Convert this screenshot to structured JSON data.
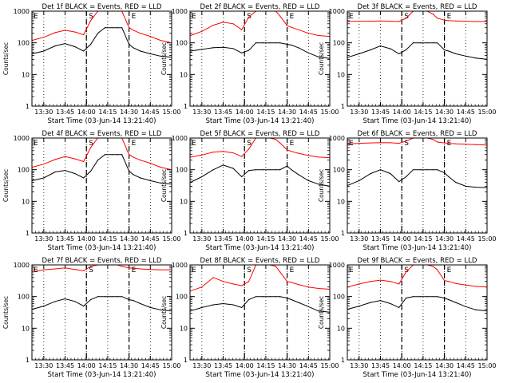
{
  "chart_data": {
    "type": "line",
    "layout": "3x3 grid",
    "shared": {
      "ylabel": "Counts/sec",
      "yscale": "log",
      "ylim": [
        1,
        1000
      ],
      "yticks": [
        {
          "value": 1,
          "label": "1"
        },
        {
          "value": 10,
          "label": "10"
        },
        {
          "value": 100,
          "label": "100"
        },
        {
          "value": 1000,
          "label": "1000"
        }
      ],
      "xlim": [
        "13:21:40",
        "15:00"
      ],
      "xticks": [
        "13:30",
        "13:45",
        "14:00",
        "14:15",
        "14:30",
        "14:45",
        "15:00"
      ],
      "markers": [
        {
          "label": "E",
          "time": "13:21:40",
          "style": "dotted"
        },
        {
          "label": "S",
          "time": "14:00",
          "style": "dashed"
        },
        {
          "label": "E",
          "time": "14:30",
          "style": "dashed"
        }
      ],
      "series_colors": {
        "events": "#000000",
        "lld": "#ff0000"
      }
    },
    "panels": [
      {
        "title": "Det 1f BLACK = Events, RED = LLD",
        "xlabel": "Start Time (03-Jun-14 13:21:40)",
        "x": [
          "13:22",
          "13:30",
          "13:38",
          "13:45",
          "13:52",
          "13:58",
          "14:03",
          "14:08",
          "14:13",
          "14:18",
          "14:22",
          "14:25",
          "14:30",
          "14:33",
          "14:38",
          "14:45",
          "14:52",
          "15:00"
        ],
        "events": [
          45,
          55,
          80,
          95,
          75,
          55,
          90,
          200,
          300,
          300,
          300,
          300,
          90,
          70,
          55,
          45,
          38,
          35
        ],
        "lld": [
          120,
          150,
          210,
          250,
          220,
          180,
          500,
          1300,
          1300,
          1300,
          1200,
          1000,
          300,
          250,
          200,
          160,
          120,
          100
        ]
      },
      {
        "title": "Det 2f BLACK = Events, RED = LLD",
        "xlabel": "Start Time (03-Jun-14 13:21:40)",
        "x": [
          "13:22",
          "13:30",
          "13:38",
          "13:45",
          "13:52",
          "13:58",
          "14:03",
          "14:08",
          "14:13",
          "14:18",
          "14:22",
          "14:25",
          "14:30",
          "14:33",
          "14:38",
          "14:45",
          "14:52",
          "15:00"
        ],
        "events": [
          55,
          62,
          70,
          72,
          66,
          48,
          58,
          100,
          100,
          100,
          100,
          100,
          90,
          85,
          70,
          48,
          36,
          32
        ],
        "lld": [
          170,
          230,
          360,
          450,
          400,
          260,
          650,
          1500,
          2000,
          2300,
          1800,
          700,
          350,
          310,
          260,
          200,
          170,
          160
        ]
      },
      {
        "title": "Det 3f BLACK = Events, RED = LLD",
        "xlabel": "Start Time (03-Jun-14 13:21:40)",
        "x": [
          "13:22",
          "13:30",
          "13:38",
          "13:45",
          "13:52",
          "13:58",
          "14:03",
          "14:08",
          "14:13",
          "14:18",
          "14:22",
          "14:25",
          "14:30",
          "14:33",
          "14:38",
          "14:45",
          "14:52",
          "15:00"
        ],
        "events": [
          35,
          45,
          60,
          80,
          65,
          45,
          60,
          100,
          100,
          100,
          100,
          100,
          60,
          55,
          45,
          38,
          33,
          30
        ],
        "lld": [
          470,
          480,
          480,
          490,
          480,
          470,
          600,
          1100,
          1200,
          1100,
          800,
          600,
          520,
          500,
          490,
          480,
          470,
          470
        ]
      },
      {
        "title": "Det 4f BLACK = Events, RED = LLD",
        "xlabel": "Start Time (03-Jun-14 13:21:40)",
        "x": [
          "13:22",
          "13:30",
          "13:38",
          "13:45",
          "13:52",
          "13:58",
          "14:03",
          "14:08",
          "14:13",
          "14:18",
          "14:22",
          "14:25",
          "14:30",
          "14:33",
          "14:38",
          "14:45",
          "14:52",
          "15:00"
        ],
        "events": [
          45,
          55,
          85,
          95,
          75,
          55,
          90,
          200,
          300,
          300,
          300,
          300,
          90,
          70,
          55,
          45,
          38,
          35
        ],
        "lld": [
          120,
          150,
          210,
          260,
          220,
          180,
          500,
          1300,
          1300,
          1300,
          1200,
          1000,
          300,
          250,
          200,
          160,
          120,
          100
        ]
      },
      {
        "title": "Det 5f BLACK = Events, RED = LLD",
        "xlabel": "Start Time (03-Jun-14 13:21:40)",
        "x": [
          "13:22",
          "13:30",
          "13:38",
          "13:45",
          "13:52",
          "13:58",
          "14:03",
          "14:08",
          "14:13",
          "14:18",
          "14:22",
          "14:25",
          "14:30",
          "14:33",
          "14:38",
          "14:45",
          "14:52",
          "15:00"
        ],
        "events": [
          40,
          60,
          100,
          140,
          110,
          60,
          95,
          100,
          100,
          100,
          100,
          100,
          130,
          100,
          70,
          45,
          35,
          30
        ],
        "lld": [
          250,
          290,
          360,
          380,
          340,
          260,
          450,
          1100,
          1100,
          1100,
          900,
          700,
          420,
          380,
          330,
          280,
          250,
          240
        ]
      },
      {
        "title": "Det 6f BLACK = Events, RED = LLD",
        "xlabel": "Start Time (03-Jun-14 13:21:40)",
        "x": [
          "13:22",
          "13:30",
          "13:38",
          "13:45",
          "13:52",
          "13:58",
          "14:03",
          "14:08",
          "14:13",
          "14:18",
          "14:22",
          "14:25",
          "14:30",
          "14:33",
          "14:38",
          "14:45",
          "14:52",
          "15:00"
        ],
        "events": [
          32,
          45,
          75,
          100,
          75,
          42,
          60,
          100,
          100,
          100,
          100,
          100,
          80,
          60,
          40,
          30,
          28,
          27
        ],
        "lld": [
          650,
          680,
          700,
          720,
          710,
          680,
          800,
          1100,
          1100,
          1100,
          900,
          750,
          700,
          680,
          660,
          640,
          620,
          600
        ]
      },
      {
        "title": "Det 7f BLACK = Events, RED = LLD",
        "xlabel": "Start Time (03-Jun-14 13:21:40)",
        "x": [
          "13:22",
          "13:30",
          "13:38",
          "13:45",
          "13:52",
          "13:58",
          "14:03",
          "14:08",
          "14:13",
          "14:18",
          "14:22",
          "14:25",
          "14:30",
          "14:33",
          "14:38",
          "14:45",
          "14:52",
          "15:00"
        ],
        "events": [
          40,
          50,
          70,
          85,
          70,
          50,
          80,
          100,
          100,
          100,
          100,
          100,
          80,
          75,
          60,
          45,
          38,
          35
        ],
        "lld": [
          600,
          700,
          750,
          800,
          720,
          650,
          900,
          1100,
          1100,
          1100,
          1000,
          900,
          800,
          780,
          750,
          720,
          700,
          700
        ]
      },
      {
        "title": "Det 8f BLACK = Events, RED = LLD",
        "xlabel": "Start Time (03-Jun-14 13:21:40)",
        "x": [
          "13:22",
          "13:30",
          "13:38",
          "13:45",
          "13:52",
          "13:58",
          "14:03",
          "14:08",
          "14:13",
          "14:18",
          "14:22",
          "14:25",
          "14:30",
          "14:33",
          "14:38",
          "14:45",
          "14:52",
          "15:00"
        ],
        "events": [
          35,
          45,
          55,
          60,
          55,
          45,
          80,
          100,
          100,
          100,
          100,
          100,
          90,
          80,
          65,
          48,
          35,
          32
        ],
        "lld": [
          150,
          200,
          400,
          300,
          250,
          220,
          300,
          1000,
          1000,
          1000,
          900,
          600,
          300,
          280,
          240,
          200,
          180,
          170
        ]
      },
      {
        "title": "Det 9f BLACK = Events, RED = LLD",
        "xlabel": "Start Time (03-Jun-14 13:21:40)",
        "x": [
          "13:22",
          "13:30",
          "13:38",
          "13:45",
          "13:52",
          "13:58",
          "14:03",
          "14:08",
          "14:13",
          "14:18",
          "14:22",
          "14:25",
          "14:30",
          "14:33",
          "14:38",
          "14:45",
          "14:52",
          "15:00"
        ],
        "events": [
          40,
          50,
          65,
          75,
          60,
          45,
          90,
          100,
          100,
          100,
          100,
          100,
          90,
          80,
          65,
          48,
          38,
          35
        ],
        "lld": [
          200,
          250,
          300,
          330,
          300,
          250,
          600,
          1100,
          1100,
          1100,
          900,
          700,
          320,
          300,
          260,
          230,
          210,
          200
        ]
      }
    ]
  }
}
